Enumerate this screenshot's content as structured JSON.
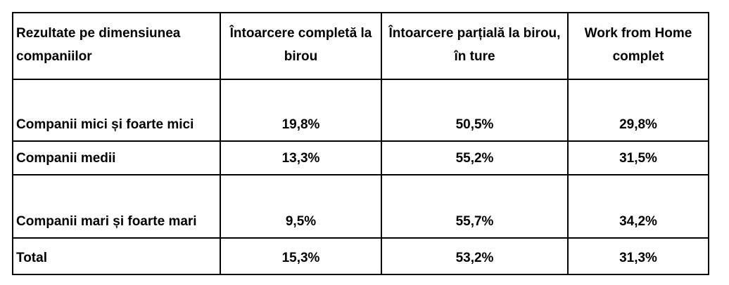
{
  "table": {
    "header": [
      "Rezultate pe dimensiunea companiilor",
      "Întoarcere completă la birou",
      "Întoarcere parțială la birou, în ture",
      "Work from Home complet"
    ],
    "rows": [
      [
        "Companii mici și foarte mici",
        "19,8%",
        "50,5%",
        "29,8%"
      ],
      [
        "Companii medii",
        "13,3%",
        "55,2%",
        "31,5%"
      ],
      [
        "Companii mari și foarte mari",
        "9,5%",
        "55,7%",
        "34,2%"
      ],
      [
        "Total",
        "15,3%",
        "53,2%",
        "31,3%"
      ]
    ]
  }
}
